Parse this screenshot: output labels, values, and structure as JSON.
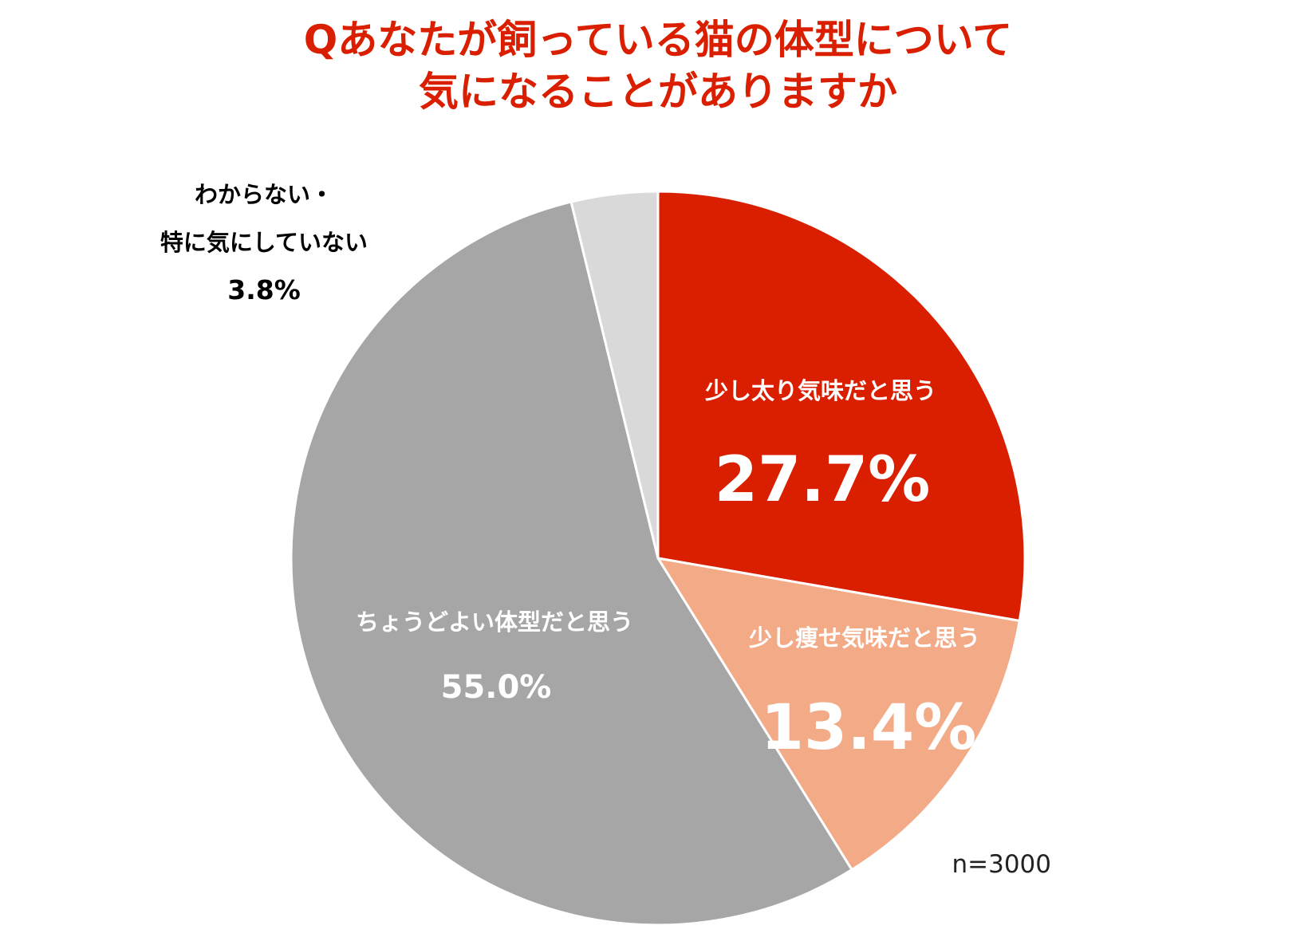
{
  "chart_data": {
    "type": "pie",
    "title_lines": [
      "Qあなたが飼っている猫の体型について",
      "気になることがありますか"
    ],
    "slices": [
      {
        "label_lines": [
          "少し太り気味だと思う"
        ],
        "value": 27.7,
        "value_label": "27.7%",
        "color": "#DA1F00"
      },
      {
        "label_lines": [
          "少し痩せ気味だと思う"
        ],
        "value": 13.4,
        "value_label": "13.4%",
        "color": "#F2AA87"
      },
      {
        "label_lines": [
          "ちょうどよい体型だと思う"
        ],
        "value": 55.0,
        "value_label": "55.0%",
        "color": "#A6A6A6"
      },
      {
        "label_lines": [
          "わからない・",
          "特に気にしていない"
        ],
        "value": 3.8,
        "value_label": "3.8%",
        "color": "#D9D9D9"
      }
    ],
    "sample_note": "n=3000",
    "title_color": "#DA1F00"
  }
}
